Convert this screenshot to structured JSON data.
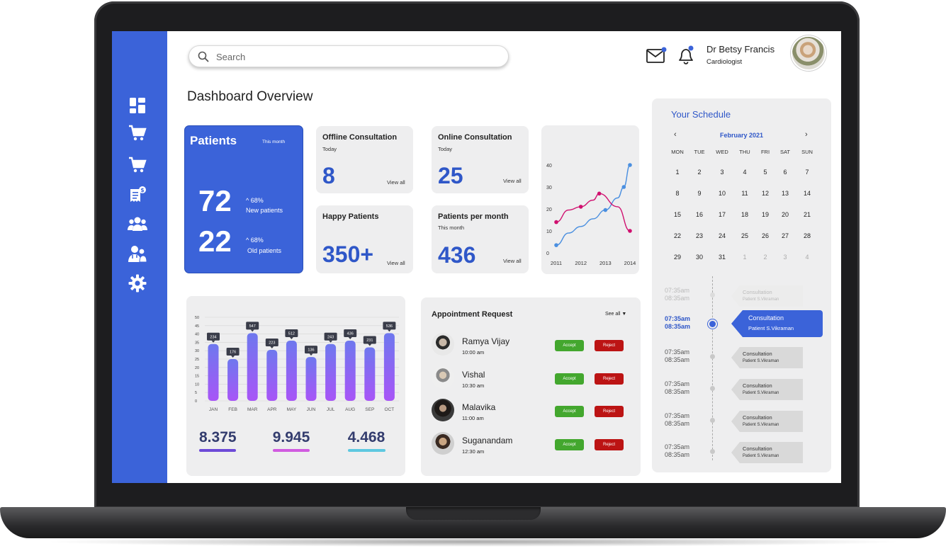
{
  "header": {
    "search_placeholder": "Search",
    "doctor_name": "Dr Betsy Francis",
    "doctor_role": "Cardiologist"
  },
  "page_title": "Dashboard Overview",
  "sidebar": {
    "icons": [
      "dashboard-icon",
      "cart-icon",
      "cart-icon",
      "billing-icon",
      "users-icon",
      "doctor-icon",
      "gear-icon"
    ],
    "accent": "#3b63d9"
  },
  "patients": {
    "title": "Patients",
    "period": "This month",
    "new_count": "72",
    "new_pct": "68%",
    "new_label": "New patients",
    "old_count": "22",
    "old_pct": "68%",
    "old_label": "Old patients"
  },
  "cards": {
    "offline": {
      "title": "Offline Consultation",
      "sub": "Today",
      "value": "8",
      "link": "View all"
    },
    "online": {
      "title": "Online Consultation",
      "sub": "Today",
      "value": "25",
      "link": "View all"
    },
    "happy": {
      "title": "Happy Patients",
      "value": "350+",
      "link": "View all"
    },
    "per_month": {
      "title": "Patients per month",
      "sub": "This month",
      "value": "436",
      "link": "View all"
    }
  },
  "chart_data": [
    {
      "type": "line",
      "x": [
        "2011",
        "2012",
        "2013",
        "2014"
      ],
      "yticks": [
        "0",
        "10",
        "20",
        "30",
        "40"
      ],
      "ylim": [
        0,
        40
      ],
      "series": [
        {
          "color": "#4a8fe0",
          "points": [
            [
              2011,
              3.5
            ],
            [
              2011.5,
              9
            ],
            [
              2012,
              12
            ],
            [
              2012.5,
              15.5
            ],
            [
              2013,
              19.5
            ],
            [
              2013.5,
              25
            ],
            [
              2013.75,
              30
            ],
            [
              2014,
              40
            ]
          ]
        },
        {
          "color": "#d0106f",
          "points": [
            [
              2011,
              14
            ],
            [
              2011.5,
              19.5
            ],
            [
              2012,
              21
            ],
            [
              2012.5,
              24
            ],
            [
              2012.75,
              27
            ],
            [
              2013.5,
              21
            ],
            [
              2014,
              10
            ]
          ]
        }
      ]
    },
    {
      "type": "bar",
      "categories": [
        "JAN",
        "FEB",
        "MAR",
        "APR",
        "MAY",
        "JUN",
        "JUL",
        "AUG",
        "SEP",
        "OCT"
      ],
      "values": [
        34,
        25,
        40.5,
        30.5,
        36,
        26.2,
        34,
        36,
        32,
        40.5
      ],
      "data_labels": [
        "234",
        "176",
        "547",
        "223",
        "512",
        "136",
        "243",
        "436",
        "231",
        "536"
      ],
      "yticks": [
        "0",
        "5",
        "10",
        "15",
        "20",
        "25",
        "30",
        "35",
        "40",
        "45",
        "50"
      ],
      "ylim": [
        0,
        50
      ],
      "bar_gradient": [
        "#7a6ff0",
        "#a855f7"
      ]
    }
  ],
  "stats": [
    {
      "value": "8.375",
      "color": "#6d4ad8"
    },
    {
      "value": "9.945",
      "color": "#d15be0"
    },
    {
      "value": "4.468",
      "color": "#5ec8e0"
    }
  ],
  "appointments": {
    "title": "Appointment Request",
    "see_all": "See all",
    "accept_label": "Accept",
    "reject_label": "Reject",
    "items": [
      {
        "name": "Ramya Vijay",
        "time": "10:00 am"
      },
      {
        "name": "Vishal",
        "time": "10:30 am"
      },
      {
        "name": "Malavika",
        "time": "11:00 am"
      },
      {
        "name": "Suganandam",
        "time": "12:30 am"
      }
    ]
  },
  "schedule": {
    "title": "Your Schedule",
    "month": "February 2021",
    "weekdays": [
      "MON",
      "TUE",
      "WED",
      "THU",
      "FRI",
      "SAT",
      "SUN"
    ],
    "weeks": [
      [
        "1",
        "2",
        "3",
        "4",
        "5",
        "6",
        "7"
      ],
      [
        "8",
        "9",
        "10",
        "11",
        "12",
        "13",
        "14"
      ],
      [
        "15",
        "16",
        "17",
        "18",
        "19",
        "20",
        "21"
      ],
      [
        "22",
        "23",
        "24",
        "25",
        "26",
        "27",
        "28"
      ],
      [
        "29",
        "30",
        "31",
        "1",
        "2",
        "3",
        "4"
      ]
    ],
    "timeline": [
      {
        "start": "07:35am",
        "end": "08:35am",
        "title": "Consultation",
        "sub": "Patient S.Vikraman",
        "state": "faded"
      },
      {
        "start": "07:35am",
        "end": "08:35am",
        "title": "Consultation",
        "sub": "Patient S.Vikraman",
        "state": "active"
      },
      {
        "start": "07:35am",
        "end": "08:35am",
        "title": "Consultation",
        "sub": "Patient S.Vikraman",
        "state": "normal"
      },
      {
        "start": "07:35am",
        "end": "08:35am",
        "title": "Consultation",
        "sub": "Patient S.Vikraman",
        "state": "normal"
      },
      {
        "start": "07:35am",
        "end": "08:35am",
        "title": "Consultation",
        "sub": "Patient S.Vikraman",
        "state": "normal"
      },
      {
        "start": "07:35am",
        "end": "08:35am",
        "title": "Consultation",
        "sub": "Patient S.Vikraman",
        "state": "normal"
      }
    ]
  }
}
